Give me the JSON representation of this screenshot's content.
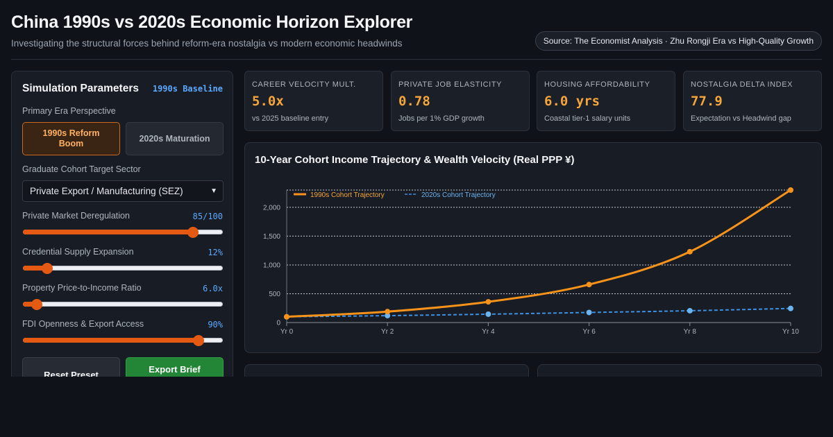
{
  "header": {
    "title": "China 1990s vs 2020s Economic Horizon Explorer",
    "subtitle": "Investigating the structural forces behind reform-era nostalgia vs modern economic headwinds",
    "source": "Source: The Economist Analysis · Zhu Rongji Era vs High-Quality Growth"
  },
  "panel": {
    "title": "Simulation Parameters",
    "tag": "1990s Baseline",
    "era_label": "Primary Era Perspective",
    "era_options": [
      "1990s Reform Boom",
      "2020s Maturation"
    ],
    "era_selected": "1990s Reform Boom",
    "sector_label": "Graduate Cohort Target Sector",
    "sector_value": "Private Export / Manufacturing (SEZ)",
    "sliders": [
      {
        "label": "Private Market Deregulation",
        "display": "85/100",
        "fraction": 0.85
      },
      {
        "label": "Credential Supply Expansion",
        "display": "12%",
        "fraction": 0.12
      },
      {
        "label": "Property Price-to-Income Ratio",
        "display": "6.0x",
        "fraction": 0.07
      },
      {
        "label": "FDI Openness & Export Access",
        "display": "90%",
        "fraction": 0.88
      }
    ],
    "reset_label": "Reset Preset",
    "export_label": "Export Brief (JSON)"
  },
  "kpis": [
    {
      "label": "CAREER VELOCITY MULT.",
      "value": "5.0x",
      "sub": "vs 2025 baseline entry"
    },
    {
      "label": "PRIVATE JOB ELASTICITY",
      "value": "0.78",
      "sub": "Jobs per 1% GDP growth"
    },
    {
      "label": "HOUSING AFFORDABILITY",
      "value": "6.0 yrs",
      "sub": "Coastal tier-1 salary units"
    },
    {
      "label": "NOSTALGIA DELTA INDEX",
      "value": "77.9",
      "sub": "Expectation vs Headwind gap"
    }
  ],
  "colors": {
    "accent_orange": "#f7931a",
    "accent_blue": "#3d8fe0",
    "kpi_value": "#f6a53a",
    "export_green": "#238636"
  },
  "chart_data": {
    "type": "line",
    "title": "10-Year Cohort Income Trajectory & Wealth Velocity (Real PPP ¥)",
    "x": [
      0,
      2,
      4,
      6,
      8,
      10
    ],
    "x_ticks": [
      "Yr 0",
      "Yr 2",
      "Yr 4",
      "Yr 6",
      "Yr 8",
      "Yr 10"
    ],
    "y_ticks": [
      "0",
      "500",
      "1,000",
      "1,500",
      "2,000"
    ],
    "ylim": [
      0,
      2300
    ],
    "grid": true,
    "legend_position": "top-left",
    "series": [
      {
        "name": "1990s Cohort Trajectory",
        "color": "#f7931a",
        "style": "solid",
        "values": [
          100,
          190,
          360,
          660,
          1230,
          2300
        ]
      },
      {
        "name": "2020s Cohort Trajectory",
        "color": "#3d8fe0",
        "style": "dashed",
        "values": [
          100,
          120,
          145,
          175,
          205,
          245
        ]
      }
    ]
  }
}
